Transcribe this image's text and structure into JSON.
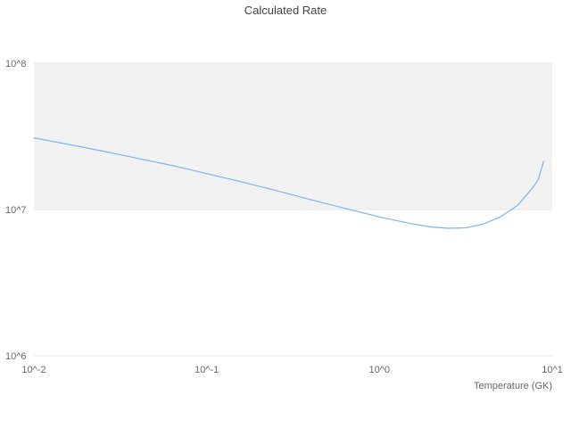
{
  "chart_data": {
    "type": "line",
    "title": "Calculated Rate",
    "xlabel": "Temperature (GK)",
    "ylabel": "",
    "x_scale": "log",
    "y_scale": "log",
    "xlim": [
      0.01,
      10
    ],
    "ylim": [
      1000000,
      100000000
    ],
    "x_tick_values": [
      0.01,
      0.1,
      1,
      10
    ],
    "x_tick_labels": [
      "10^-2",
      "10^-1",
      "10^0",
      "10^1"
    ],
    "y_tick_values": [
      1000000,
      10000000,
      100000000
    ],
    "y_tick_labels": [
      "10^6",
      "10^7",
      "10^8"
    ],
    "grid": "horizontal",
    "legend": "none",
    "band": {
      "y_from": 10000000,
      "y_to": 100000000,
      "color": "#f2f2f2"
    },
    "grid_color": "#e6e6e6",
    "text_color": "#666666",
    "title_color": "#444444",
    "series": [
      {
        "name": "Calculated Rate",
        "color": "#7cb5ec",
        "x": [
          0.01,
          0.0158,
          0.0251,
          0.0398,
          0.0631,
          0.1,
          0.158,
          0.251,
          0.398,
          0.631,
          1.0,
          1.26,
          1.58,
          2.0,
          2.51,
          3.16,
          3.98,
          5.01,
          6.31,
          7.59,
          8.3,
          8.91
        ],
        "y": [
          30900000,
          27900000,
          25100000,
          22400000,
          20000000,
          17600000,
          15500000,
          13500000,
          11700000,
          10200000,
          8900000,
          8400000,
          7940000,
          7590000,
          7450000,
          7500000,
          7940000,
          8910000,
          10700000,
          13800000,
          16000000,
          21400000
        ]
      }
    ]
  }
}
